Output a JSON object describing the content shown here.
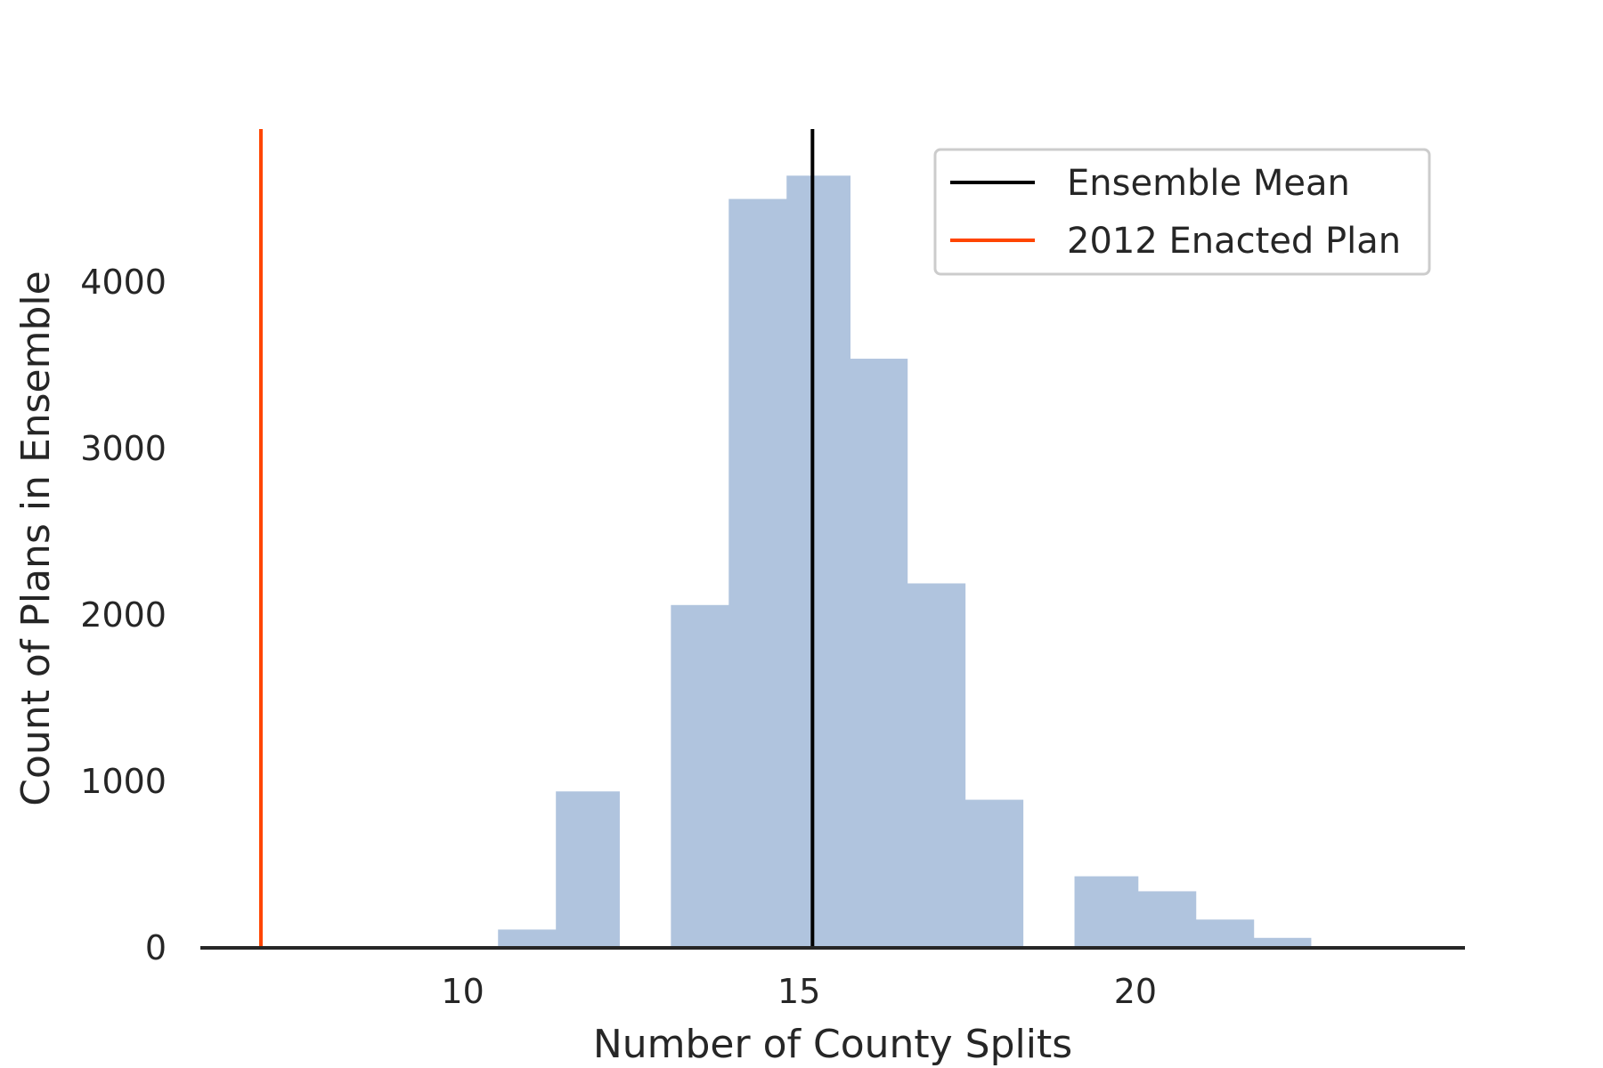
{
  "chart_data": {
    "type": "bar",
    "title": "",
    "xlabel": "Number of County Splits",
    "ylabel": "Count of Plans in Ensemble",
    "bin_width": 0.95,
    "bins": [
      {
        "x": 11.0,
        "value": 110
      },
      {
        "x": 11.86,
        "value": 940
      },
      {
        "x": 13.57,
        "value": 2060
      },
      {
        "x": 14.43,
        "value": 4500
      },
      {
        "x": 15.29,
        "value": 4640
      },
      {
        "x": 16.14,
        "value": 3540
      },
      {
        "x": 17.0,
        "value": 2190
      },
      {
        "x": 17.86,
        "value": 890
      },
      {
        "x": 19.57,
        "value": 430
      },
      {
        "x": 20.43,
        "value": 340
      },
      {
        "x": 21.29,
        "value": 170
      },
      {
        "x": 22.14,
        "value": 60
      }
    ],
    "xlim": [
      6.1,
      24.9
    ],
    "ylim": [
      0,
      4920
    ],
    "xticks": [
      10,
      15,
      20
    ],
    "yticks": [
      0,
      1000,
      2000,
      3000,
      4000
    ],
    "xtick_labels": [
      "10",
      "15",
      "20"
    ],
    "ytick_labels": [
      "0",
      "1000",
      "2000",
      "3000",
      "4000"
    ],
    "bar_color": "#b0c4de",
    "vlines": [
      {
        "name": "Ensemble Mean",
        "x": 15.2,
        "color": "#000000"
      },
      {
        "name": "2012 Enacted Plan",
        "x": 7.0,
        "color": "#ff4500"
      }
    ],
    "legend": {
      "placement": "top-right",
      "entries": [
        {
          "label": "Ensemble Mean",
          "color": "#000000"
        },
        {
          "label": "2012 Enacted Plan",
          "color": "#ff4500"
        }
      ]
    },
    "grid": false
  }
}
